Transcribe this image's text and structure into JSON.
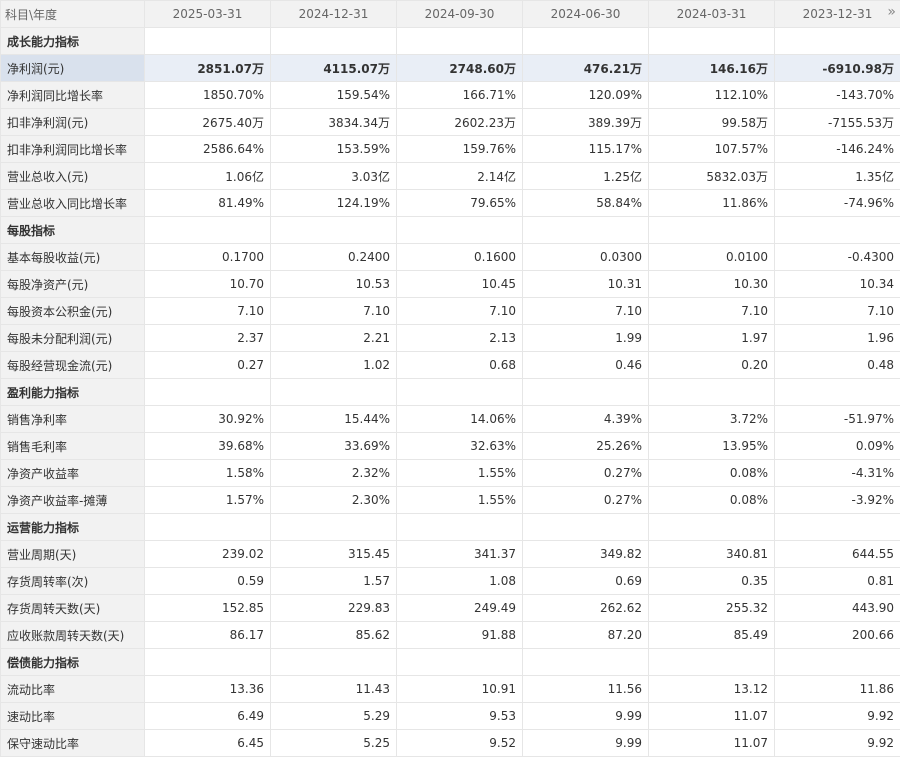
{
  "header": {
    "label": "科目\\年度",
    "periods": [
      "2025-03-31",
      "2024-12-31",
      "2024-09-30",
      "2024-06-30",
      "2024-03-31",
      "2023-12-31"
    ],
    "more_icon": "double-chevron-right-icon"
  },
  "sections": [
    {
      "title": "成长能力指标",
      "rows": [
        {
          "label": "净利润(元)",
          "values": [
            "2851.07万",
            "4115.07万",
            "2748.60万",
            "476.21万",
            "146.16万",
            "-6910.98万"
          ],
          "highlight": true
        },
        {
          "label": "净利润同比增长率",
          "values": [
            "1850.70%",
            "159.54%",
            "166.71%",
            "120.09%",
            "112.10%",
            "-143.70%"
          ]
        },
        {
          "label": "扣非净利润(元)",
          "values": [
            "2675.40万",
            "3834.34万",
            "2602.23万",
            "389.39万",
            "99.58万",
            "-7155.53万"
          ]
        },
        {
          "label": "扣非净利润同比增长率",
          "values": [
            "2586.64%",
            "153.59%",
            "159.76%",
            "115.17%",
            "107.57%",
            "-146.24%"
          ]
        },
        {
          "label": "营业总收入(元)",
          "values": [
            "1.06亿",
            "3.03亿",
            "2.14亿",
            "1.25亿",
            "5832.03万",
            "1.35亿"
          ]
        },
        {
          "label": "营业总收入同比增长率",
          "values": [
            "81.49%",
            "124.19%",
            "79.65%",
            "58.84%",
            "11.86%",
            "-74.96%"
          ]
        }
      ]
    },
    {
      "title": "每股指标",
      "rows": [
        {
          "label": "基本每股收益(元)",
          "values": [
            "0.1700",
            "0.2400",
            "0.1600",
            "0.0300",
            "0.0100",
            "-0.4300"
          ]
        },
        {
          "label": "每股净资产(元)",
          "values": [
            "10.70",
            "10.53",
            "10.45",
            "10.31",
            "10.30",
            "10.34"
          ]
        },
        {
          "label": "每股资本公积金(元)",
          "values": [
            "7.10",
            "7.10",
            "7.10",
            "7.10",
            "7.10",
            "7.10"
          ]
        },
        {
          "label": "每股未分配利润(元)",
          "values": [
            "2.37",
            "2.21",
            "2.13",
            "1.99",
            "1.97",
            "1.96"
          ]
        },
        {
          "label": "每股经营现金流(元)",
          "values": [
            "0.27",
            "1.02",
            "0.68",
            "0.46",
            "0.20",
            "0.48"
          ]
        }
      ]
    },
    {
      "title": "盈利能力指标",
      "rows": [
        {
          "label": "销售净利率",
          "values": [
            "30.92%",
            "15.44%",
            "14.06%",
            "4.39%",
            "3.72%",
            "-51.97%"
          ]
        },
        {
          "label": "销售毛利率",
          "values": [
            "39.68%",
            "33.69%",
            "32.63%",
            "25.26%",
            "13.95%",
            "0.09%"
          ]
        },
        {
          "label": "净资产收益率",
          "values": [
            "1.58%",
            "2.32%",
            "1.55%",
            "0.27%",
            "0.08%",
            "-4.31%"
          ]
        },
        {
          "label": "净资产收益率-摊薄",
          "values": [
            "1.57%",
            "2.30%",
            "1.55%",
            "0.27%",
            "0.08%",
            "-3.92%"
          ]
        }
      ]
    },
    {
      "title": "运营能力指标",
      "rows": [
        {
          "label": "营业周期(天)",
          "values": [
            "239.02",
            "315.45",
            "341.37",
            "349.82",
            "340.81",
            "644.55"
          ]
        },
        {
          "label": "存货周转率(次)",
          "values": [
            "0.59",
            "1.57",
            "1.08",
            "0.69",
            "0.35",
            "0.81"
          ]
        },
        {
          "label": "存货周转天数(天)",
          "values": [
            "152.85",
            "229.83",
            "249.49",
            "262.62",
            "255.32",
            "443.90"
          ]
        },
        {
          "label": "应收账款周转天数(天)",
          "values": [
            "86.17",
            "85.62",
            "91.88",
            "87.20",
            "85.49",
            "200.66"
          ]
        }
      ]
    },
    {
      "title": "偿债能力指标",
      "rows": [
        {
          "label": "流动比率",
          "values": [
            "13.36",
            "11.43",
            "10.91",
            "11.56",
            "13.12",
            "11.86"
          ]
        },
        {
          "label": "速动比率",
          "values": [
            "6.49",
            "5.29",
            "9.53",
            "9.99",
            "11.07",
            "9.92"
          ]
        },
        {
          "label": "保守速动比率",
          "values": [
            "6.45",
            "5.25",
            "9.52",
            "9.99",
            "11.07",
            "9.92"
          ]
        }
      ]
    }
  ]
}
